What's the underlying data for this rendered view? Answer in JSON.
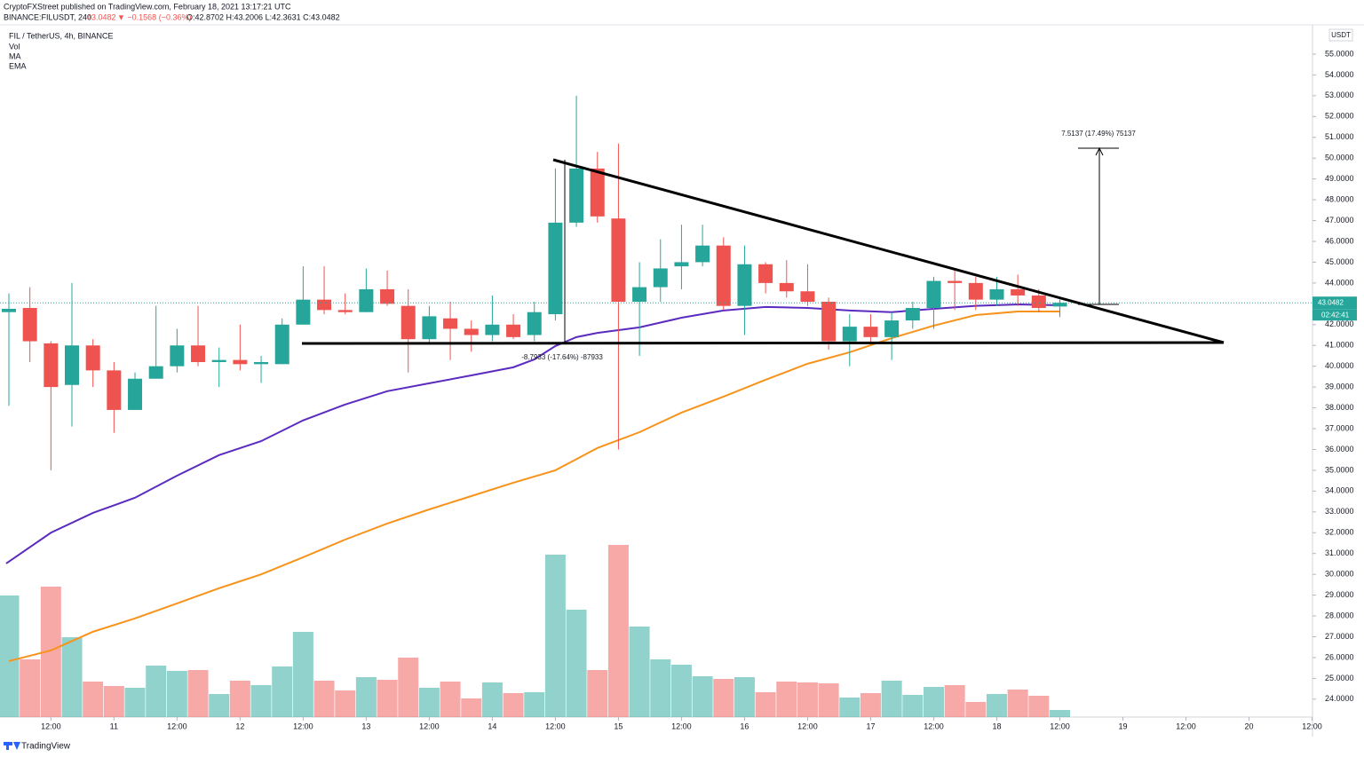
{
  "header": {
    "published": "CryptoFXStreet published on TradingView.com, February 18, 2021 13:17:21 UTC",
    "symbol": "BINANCE:FILUSDT, 240",
    "price": "43.0482",
    "change": "▼ −0.1568 (−0.36%)",
    "ohlc": "O:42.8702 H:43.2006 L:42.3631 C:43.0482"
  },
  "legend": [
    "FIL / TetherUS, 4h, BINANCE",
    "Vol",
    "MA",
    "EMA"
  ],
  "footer": "TradingView",
  "chart_data": {
    "type": "candlestick",
    "up_color": "#26a69a",
    "down_color": "#ef5350",
    "open": [
      42.6,
      42.8,
      41.1,
      39.1,
      41.0,
      39.8,
      37.9,
      39.4,
      40.0,
      41.0,
      40.2,
      40.3,
      40.1,
      40.1,
      42.0,
      43.2,
      42.7,
      42.6,
      43.7,
      42.9,
      41.3,
      42.3,
      41.8,
      41.5,
      42.0,
      41.5,
      42.5,
      46.9,
      49.5,
      47.1,
      43.1,
      43.8,
      44.8,
      45.0,
      45.8,
      42.9,
      44.9,
      44.0,
      43.6,
      43.1,
      41.2,
      41.9,
      41.4,
      42.2,
      42.8,
      44.1,
      44.0,
      43.2,
      43.7,
      43.4,
      42.8702
    ],
    "high": [
      43.5,
      43.8,
      41.2,
      44.0,
      41.3,
      40.2,
      39.7,
      42.9,
      41.8,
      42.9,
      40.9,
      42.0,
      40.5,
      42.3,
      44.8,
      44.8,
      43.5,
      44.7,
      44.6,
      43.7,
      42.9,
      43.1,
      42.2,
      43.4,
      42.5,
      43.1,
      49.5,
      53.0,
      50.3,
      50.7,
      45.0,
      46.1,
      46.8,
      46.8,
      46.2,
      45.8,
      45.0,
      45.1,
      44.9,
      43.3,
      42.5,
      42.5,
      42.6,
      43.1,
      44.3,
      44.7,
      44.3,
      44.3,
      44.4,
      43.7,
      43.2006
    ],
    "low": [
      38.1,
      40.2,
      35.0,
      37.1,
      39.0,
      36.8,
      37.9,
      39.4,
      39.7,
      40.0,
      39.0,
      39.8,
      39.2,
      40.1,
      42.0,
      42.5,
      42.5,
      42.6,
      42.9,
      39.7,
      41.1,
      40.3,
      40.7,
      41.2,
      41.3,
      41.2,
      42.2,
      46.7,
      46.9,
      36.0,
      40.5,
      43.1,
      43.7,
      44.8,
      42.7,
      41.5,
      43.5,
      43.3,
      42.9,
      40.8,
      40.0,
      41.1,
      40.3,
      41.8,
      41.8,
      42.7,
      42.7,
      42.9,
      42.9,
      42.6,
      42.3631
    ],
    "close": [
      42.76,
      41.2,
      39.0,
      41.0,
      39.8,
      37.9,
      39.4,
      40.0,
      41.0,
      40.2,
      40.3,
      40.1,
      40.2,
      42.0,
      43.2,
      42.7,
      42.6,
      43.7,
      43.0,
      41.3,
      42.4,
      41.8,
      41.5,
      42.0,
      41.4,
      42.6,
      46.9,
      49.5,
      47.2,
      43.1,
      43.8,
      44.7,
      45.0,
      45.8,
      42.9,
      44.9,
      44.0,
      43.6,
      43.1,
      41.2,
      41.9,
      41.4,
      42.2,
      42.8,
      44.1,
      44.0,
      43.2,
      43.7,
      43.4,
      42.8,
      43.0482
    ],
    "volume": [
      137,
      65,
      147,
      90,
      40,
      35,
      33,
      58,
      52,
      53,
      26,
      41,
      36,
      57,
      96,
      41,
      30,
      45,
      42,
      67,
      33,
      40,
      21,
      39,
      27,
      28,
      183,
      121,
      53,
      194,
      102,
      65,
      59,
      46,
      43,
      45,
      28,
      40,
      39,
      38,
      22,
      27,
      41,
      25,
      34,
      36,
      17,
      26,
      31,
      24,
      8
    ],
    "vlim": [
      0,
      200
    ],
    "series": [
      {
        "name": "MA",
        "color": "#5b2bbf",
        "x": [
          -0.13,
          2,
          4,
          6,
          8,
          10,
          12,
          14,
          16,
          18,
          20,
          22,
          24,
          25,
          26,
          27,
          28,
          30,
          32,
          34,
          36,
          38,
          40,
          42,
          44,
          46,
          48,
          50
        ],
        "values": [
          30.52,
          32.0,
          32.95,
          33.68,
          34.74,
          35.73,
          36.4,
          37.4,
          38.16,
          38.8,
          39.18,
          39.56,
          39.95,
          40.33,
          40.97,
          41.4,
          41.6,
          41.87,
          42.33,
          42.68,
          42.85,
          42.8,
          42.68,
          42.6,
          42.76,
          42.9,
          42.97,
          42.93
        ]
      },
      {
        "name": "EMA",
        "color": "#f7931a",
        "x": [
          0,
          2,
          4,
          6,
          8,
          10,
          12,
          14,
          16,
          18,
          20,
          22,
          24,
          26,
          28,
          30,
          32,
          34,
          36,
          38,
          40,
          42,
          44,
          46,
          48,
          50
        ],
        "values": [
          25.83,
          26.34,
          27.24,
          27.88,
          28.6,
          29.33,
          30.0,
          30.82,
          31.67,
          32.44,
          33.12,
          33.76,
          34.4,
          35.0,
          36.07,
          36.83,
          37.77,
          38.54,
          39.35,
          40.12,
          40.67,
          41.35,
          41.95,
          42.46,
          42.63,
          42.63
        ]
      }
    ],
    "last_price": 43.0482,
    "countdown": "02:42:41",
    "currency": "USDT",
    "annotations": [
      "-8.7933 (-17.64%) -87933",
      "7.5137 (17.49%) 75137"
    ],
    "xlim": [
      -0.4225,
      62.02
    ],
    "ylim": [
      23.14,
      57.6
    ],
    "xticks": [
      {
        "value": 2,
        "label": "12:00"
      },
      {
        "value": 5,
        "label": "11"
      },
      {
        "value": 8,
        "label": "12:00"
      },
      {
        "value": 11,
        "label": "12"
      },
      {
        "value": 14,
        "label": "12:00"
      },
      {
        "value": 17,
        "label": "13"
      },
      {
        "value": 20,
        "label": "12:00"
      },
      {
        "value": 23,
        "label": "14"
      },
      {
        "value": 26,
        "label": "12:00"
      },
      {
        "value": 29,
        "label": "15"
      },
      {
        "value": 32,
        "label": "12:00"
      },
      {
        "value": 35,
        "label": "16"
      },
      {
        "value": 38,
        "label": "12:00"
      },
      {
        "value": 41,
        "label": "17"
      },
      {
        "value": 44,
        "label": "12:00"
      },
      {
        "value": 47,
        "label": "18"
      },
      {
        "value": 50,
        "label": "12:00"
      },
      {
        "value": 53,
        "label": "19"
      },
      {
        "value": 56,
        "label": "12:00"
      },
      {
        "value": 59,
        "label": "20"
      },
      {
        "value": 62,
        "label": "12:00"
      }
    ],
    "yticks": [
      {
        "value": 24,
        "label": "24.0000"
      },
      {
        "value": 25,
        "label": "25.0000"
      },
      {
        "value": 26,
        "label": "26.0000"
      },
      {
        "value": 27,
        "label": "27.0000"
      },
      {
        "value": 28,
        "label": "28.0000"
      },
      {
        "value": 29,
        "label": "29.0000"
      },
      {
        "value": 30,
        "label": "30.0000"
      },
      {
        "value": 31,
        "label": "31.0000"
      },
      {
        "value": 32,
        "label": "32.0000"
      },
      {
        "value": 33,
        "label": "33.0000"
      },
      {
        "value": 34,
        "label": "34.0000"
      },
      {
        "value": 35,
        "label": "35.0000"
      },
      {
        "value": 36,
        "label": "36.0000"
      },
      {
        "value": 37,
        "label": "37.0000"
      },
      {
        "value": 38,
        "label": "38.0000"
      },
      {
        "value": 39,
        "label": "39.0000"
      },
      {
        "value": 40,
        "label": "40.0000"
      },
      {
        "value": 41,
        "label": "41.0000"
      },
      {
        "value": 42,
        "label": "42.0000"
      },
      {
        "value": 43,
        "label": "43.0000"
      },
      {
        "value": 44,
        "label": "44.0000"
      },
      {
        "value": 45,
        "label": "45.0000"
      },
      {
        "value": 46,
        "label": "46.0000"
      },
      {
        "value": 47,
        "label": "47.0000"
      },
      {
        "value": 48,
        "label": "48.0000"
      },
      {
        "value": 49,
        "label": "49.0000"
      },
      {
        "value": 50,
        "label": "50.0000"
      },
      {
        "value": 51,
        "label": "51.0000"
      },
      {
        "value": 52,
        "label": "52.0000"
      },
      {
        "value": 53,
        "label": "53.0000"
      },
      {
        "value": 54,
        "label": "54.0000"
      },
      {
        "value": 55,
        "label": "55.0000"
      }
    ]
  }
}
